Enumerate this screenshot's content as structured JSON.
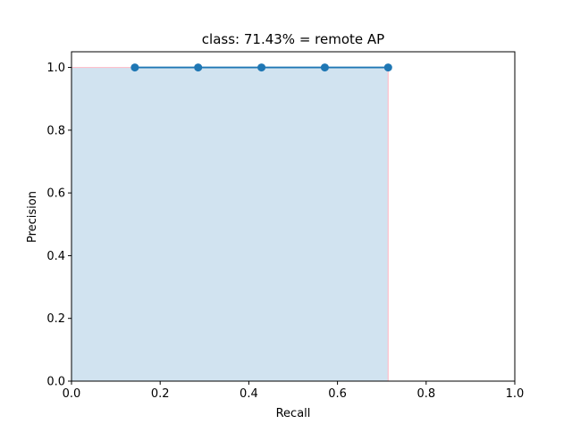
{
  "chart_data": {
    "type": "area",
    "title": "class: 71.43% = remote AP",
    "xlabel": "Recall",
    "ylabel": "Precision",
    "xlim": [
      0.0,
      1.0
    ],
    "ylim": [
      0.0,
      1.05
    ],
    "grid": false,
    "legend": "none",
    "x_ticks": [
      "0.0",
      "0.2",
      "0.4",
      "0.6",
      "0.8",
      "1.0"
    ],
    "y_ticks": [
      "0.0",
      "0.2",
      "0.4",
      "0.6",
      "0.8",
      "1.0"
    ],
    "series": [
      {
        "color": "#1f77b4",
        "marker": "circle",
        "x": [
          0.1429,
          0.2857,
          0.4286,
          0.5714,
          0.7143
        ],
        "y": [
          1.0,
          1.0,
          1.0,
          1.0,
          1.0
        ]
      }
    ],
    "area": {
      "fill_color": "#d1e3f0",
      "edge_color": "#ffc0cb",
      "x": [
        0.0,
        0.7143
      ],
      "y": [
        1.0,
        1.0
      ]
    }
  }
}
